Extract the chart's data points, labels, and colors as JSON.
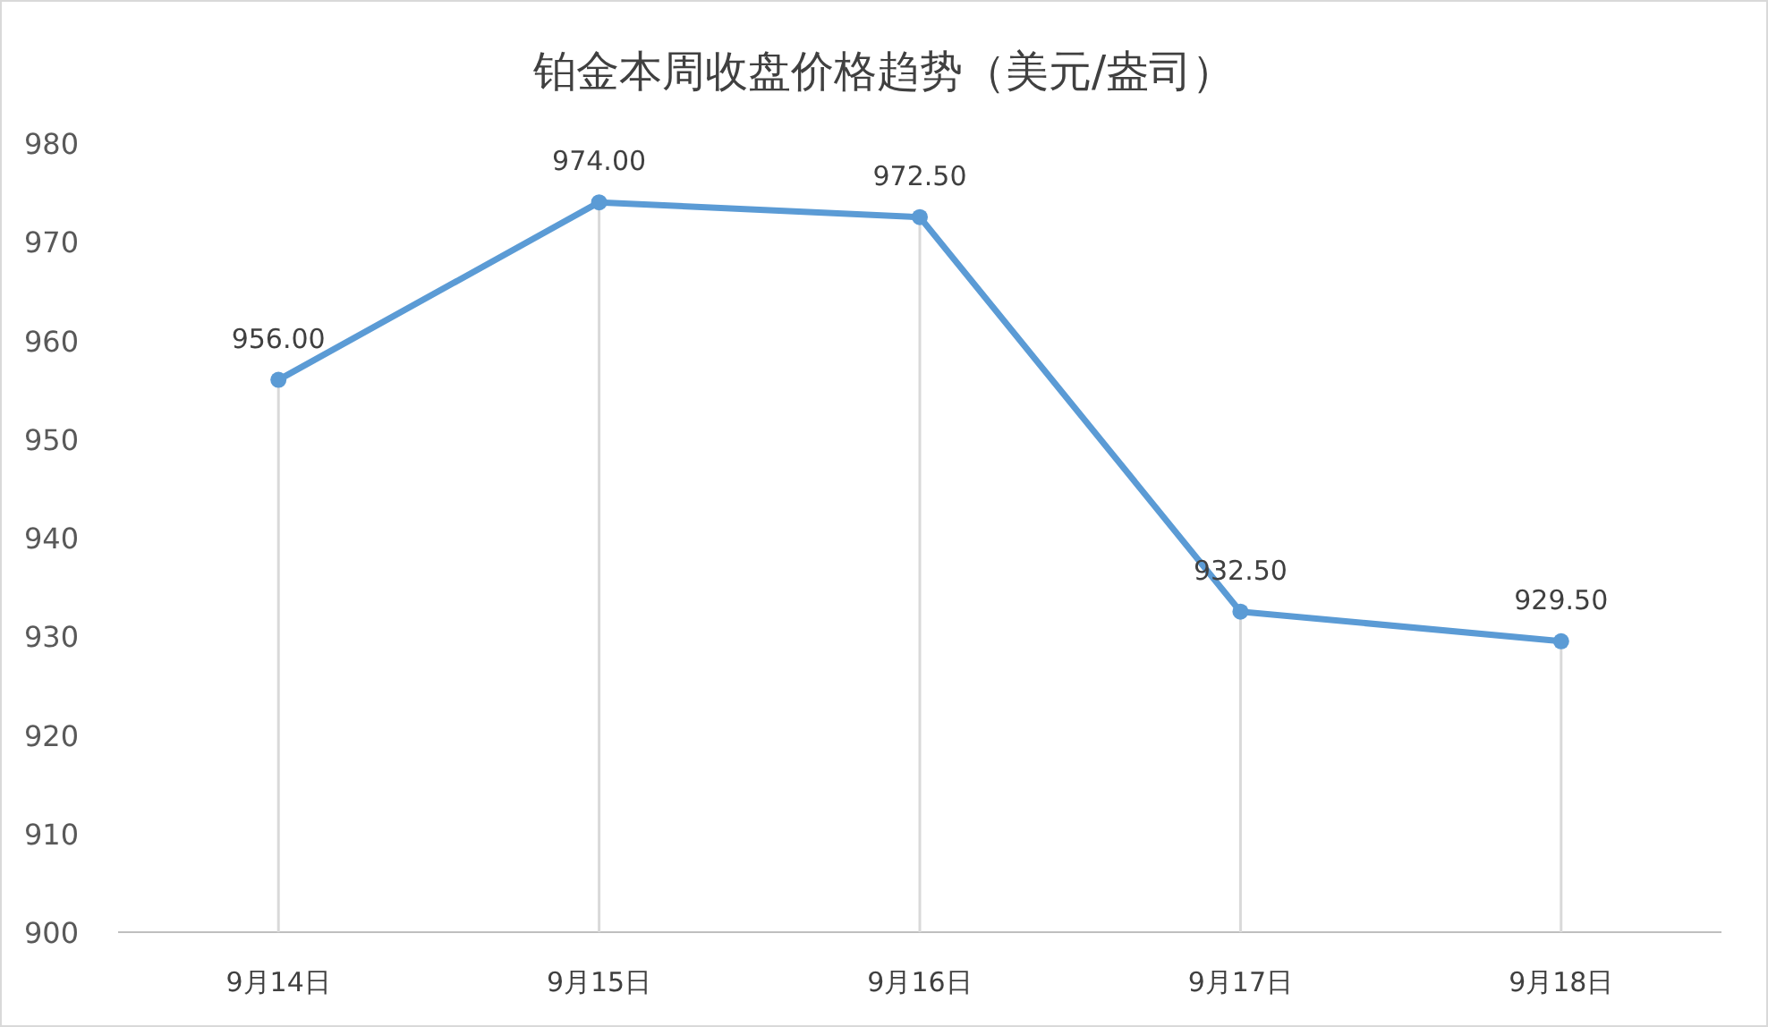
{
  "chart_data": {
    "type": "line",
    "title": "铂金本周收盘价格趋势（美元/盎司）",
    "categories": [
      "9月14日",
      "9月15日",
      "9月16日",
      "9月17日",
      "9月18日"
    ],
    "series": [
      {
        "color": "#5b9bd5",
        "values": [
          956,
          974,
          972.5,
          932.5,
          929.5
        ],
        "value_labels": [
          "956.00",
          "974.00",
          "972.50",
          "932.50",
          "929.50"
        ]
      }
    ],
    "ylim": [
      900,
      980
    ],
    "yticks": [
      900,
      910,
      920,
      930,
      940,
      950,
      960,
      970,
      980
    ],
    "grid": "x",
    "marker": "circle",
    "line_style": "solid"
  }
}
